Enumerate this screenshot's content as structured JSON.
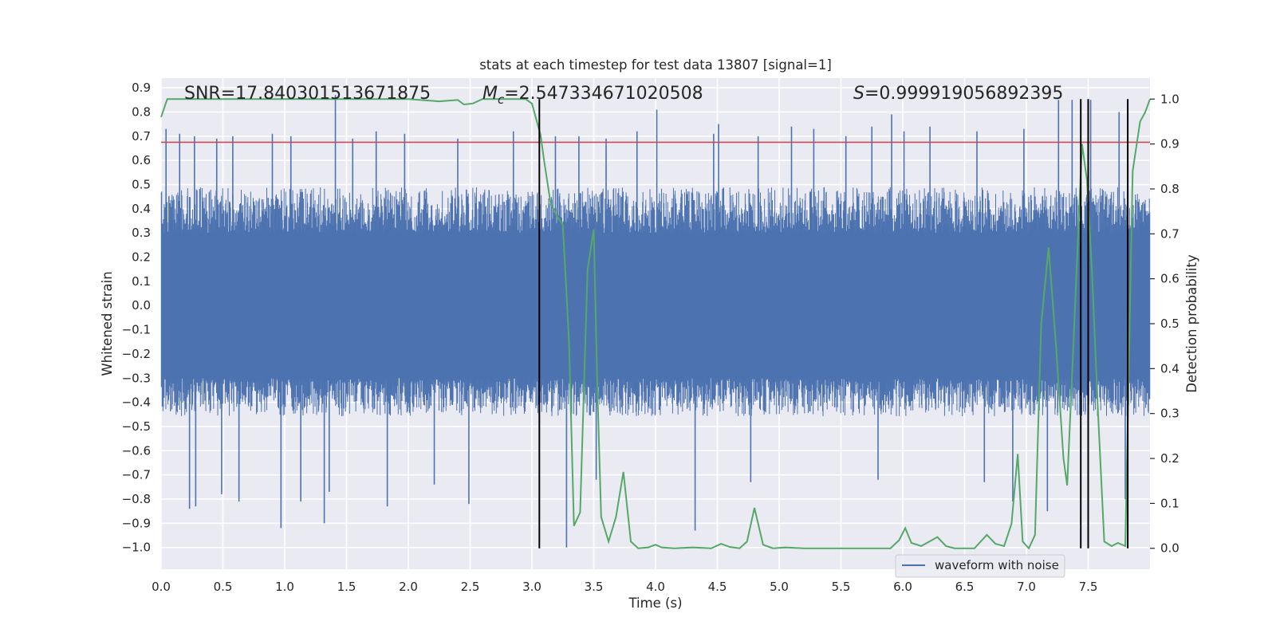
{
  "chart_data": {
    "type": "line",
    "title": "stats at each timestep for test data 13807 [signal=1]",
    "xlabel": "Time (s)",
    "ylabel": "Whitened strain",
    "y2label": "Detection probability",
    "xlim": [
      0.0,
      8.0
    ],
    "ylim": [
      -1.09,
      0.94
    ],
    "y2lim": [
      -0.0466,
      1.0466
    ],
    "xticks": [
      0.0,
      0.5,
      1.0,
      1.5,
      2.0,
      2.5,
      3.0,
      3.5,
      4.0,
      4.5,
      5.0,
      5.5,
      6.0,
      6.5,
      7.0,
      7.5
    ],
    "xtick_labels": [
      "0.0",
      "0.5",
      "1.0",
      "1.5",
      "2.0",
      "2.5",
      "3.0",
      "3.5",
      "4.0",
      "4.5",
      "5.0",
      "5.5",
      "6.0",
      "6.5",
      "7.0",
      "7.5"
    ],
    "yticks": [
      0.9,
      0.8,
      0.7,
      0.6,
      0.5,
      0.4,
      0.3,
      0.2,
      0.1,
      0.0,
      -0.1,
      -0.2,
      -0.3,
      -0.4,
      -0.5,
      -0.6,
      -0.7,
      -0.8,
      -0.9,
      -1.0
    ],
    "ytick_labels": [
      "0.9",
      "0.8",
      "0.7",
      "0.6",
      "0.5",
      "0.4",
      "0.3",
      "0.2",
      "0.1",
      "0.0",
      "−0.1",
      "−0.2",
      "−0.3",
      "−0.4",
      "−0.5",
      "−0.6",
      "−0.7",
      "−0.8",
      "−0.9",
      "−1.0"
    ],
    "y2ticks": [
      1.0,
      0.9,
      0.8,
      0.7,
      0.6,
      0.5,
      0.4,
      0.3,
      0.2,
      0.1,
      0.0
    ],
    "y2tick_labels": [
      "1.0",
      "0.9",
      "0.8",
      "0.7",
      "0.6",
      "0.5",
      "0.4",
      "0.3",
      "0.2",
      "0.1",
      "0.0"
    ],
    "annotations": {
      "snr": "SNR=17.840301513671875",
      "mc_symbol": "M",
      "mc_subscript": "c",
      "mc_value": "=2.547334671020508",
      "s_symbol": "S",
      "s_value": "=0.999919056892395"
    },
    "waveform": {
      "name": "waveform with noise",
      "color": "#4c72b0",
      "typical_range": [
        -0.45,
        0.48
      ],
      "core_range": [
        -0.3,
        0.3
      ],
      "peaks": [
        {
          "t": 0.04,
          "v": 0.73
        },
        {
          "t": 0.15,
          "v": 0.71
        },
        {
          "t": 0.27,
          "v": 0.7
        },
        {
          "t": 0.45,
          "v": 0.69
        },
        {
          "t": 0.58,
          "v": 0.7
        },
        {
          "t": 0.9,
          "v": 0.71
        },
        {
          "t": 1.05,
          "v": 0.7
        },
        {
          "t": 1.41,
          "v": 0.87
        },
        {
          "t": 1.55,
          "v": 0.69
        },
        {
          "t": 1.74,
          "v": 0.72
        },
        {
          "t": 1.97,
          "v": 0.71
        },
        {
          "t": 2.4,
          "v": 0.69
        },
        {
          "t": 2.85,
          "v": 0.72
        },
        {
          "t": 3.19,
          "v": 0.7
        },
        {
          "t": 3.38,
          "v": 0.7
        },
        {
          "t": 3.6,
          "v": 0.69
        },
        {
          "t": 3.85,
          "v": 0.72
        },
        {
          "t": 4.01,
          "v": 0.81
        },
        {
          "t": 4.47,
          "v": 0.71
        },
        {
          "t": 4.51,
          "v": 0.75
        },
        {
          "t": 4.83,
          "v": 0.7
        },
        {
          "t": 5.1,
          "v": 0.74
        },
        {
          "t": 5.28,
          "v": 0.73
        },
        {
          "t": 5.54,
          "v": 0.7
        },
        {
          "t": 5.75,
          "v": 0.74
        },
        {
          "t": 5.91,
          "v": 0.79
        },
        {
          "t": 6.01,
          "v": 0.72
        },
        {
          "t": 6.22,
          "v": 0.74
        },
        {
          "t": 6.6,
          "v": 0.72
        },
        {
          "t": 6.98,
          "v": 0.73
        },
        {
          "t": 7.26,
          "v": 0.85
        },
        {
          "t": 7.37,
          "v": 0.85
        },
        {
          "t": 7.52,
          "v": 0.85
        },
        {
          "t": 7.75,
          "v": 0.8
        }
      ],
      "troughs": [
        {
          "t": 0.23,
          "v": -0.84
        },
        {
          "t": 0.28,
          "v": -0.83
        },
        {
          "t": 0.49,
          "v": -0.78
        },
        {
          "t": 0.63,
          "v": -0.81
        },
        {
          "t": 0.97,
          "v": -0.92
        },
        {
          "t": 1.13,
          "v": -0.81
        },
        {
          "t": 1.32,
          "v": -0.9
        },
        {
          "t": 1.36,
          "v": -0.77
        },
        {
          "t": 1.83,
          "v": -0.83
        },
        {
          "t": 2.21,
          "v": -0.74
        },
        {
          "t": 2.49,
          "v": -0.82
        },
        {
          "t": 3.28,
          "v": -1.0
        },
        {
          "t": 3.52,
          "v": -0.72
        },
        {
          "t": 4.32,
          "v": -0.93
        },
        {
          "t": 4.77,
          "v": -0.73
        },
        {
          "t": 5.8,
          "v": -0.72
        },
        {
          "t": 6.66,
          "v": -0.73
        },
        {
          "t": 6.89,
          "v": -0.81
        },
        {
          "t": 7.17,
          "v": -0.85
        },
        {
          "t": 7.5,
          "v": -0.81
        },
        {
          "t": 7.8,
          "v": -0.8
        }
      ]
    },
    "threshold": {
      "value": 0.675,
      "color": "#c44e52"
    },
    "detection_probability": {
      "color": "#55a868",
      "points": [
        [
          0.0,
          0.96
        ],
        [
          0.05,
          1.0
        ],
        [
          0.5,
          1.0
        ],
        [
          1.0,
          1.0
        ],
        [
          1.5,
          1.0
        ],
        [
          2.0,
          1.0
        ],
        [
          2.25,
          0.995
        ],
        [
          2.4,
          0.998
        ],
        [
          2.45,
          0.988
        ],
        [
          2.52,
          0.99
        ],
        [
          2.6,
          1.0
        ],
        [
          2.95,
          1.0
        ],
        [
          3.0,
          0.99
        ],
        [
          3.07,
          0.92
        ],
        [
          3.1,
          0.86
        ],
        [
          3.15,
          0.77
        ],
        [
          3.2,
          0.74
        ],
        [
          3.25,
          0.72
        ],
        [
          3.3,
          0.46
        ],
        [
          3.34,
          0.05
        ],
        [
          3.39,
          0.08
        ],
        [
          3.45,
          0.62
        ],
        [
          3.5,
          0.71
        ],
        [
          3.53,
          0.35
        ],
        [
          3.56,
          0.07
        ],
        [
          3.62,
          0.015
        ],
        [
          3.68,
          0.07
        ],
        [
          3.74,
          0.17
        ],
        [
          3.8,
          0.015
        ],
        [
          3.86,
          0.0
        ],
        [
          3.94,
          0.002
        ],
        [
          4.0,
          0.008
        ],
        [
          4.05,
          0.002
        ],
        [
          4.15,
          0.0
        ],
        [
          4.3,
          0.002
        ],
        [
          4.45,
          0.0
        ],
        [
          4.53,
          0.01
        ],
        [
          4.6,
          0.003
        ],
        [
          4.68,
          0.0
        ],
        [
          4.74,
          0.015
        ],
        [
          4.8,
          0.09
        ],
        [
          4.87,
          0.008
        ],
        [
          4.95,
          0.0
        ],
        [
          5.05,
          0.002
        ],
        [
          5.2,
          0.0
        ],
        [
          5.9,
          0.0
        ],
        [
          5.97,
          0.018
        ],
        [
          6.02,
          0.045
        ],
        [
          6.07,
          0.012
        ],
        [
          6.15,
          0.005
        ],
        [
          6.28,
          0.025
        ],
        [
          6.35,
          0.005
        ],
        [
          6.42,
          0.0
        ],
        [
          6.58,
          0.0
        ],
        [
          6.68,
          0.03
        ],
        [
          6.75,
          0.01
        ],
        [
          6.82,
          0.005
        ],
        [
          6.88,
          0.055
        ],
        [
          6.93,
          0.21
        ],
        [
          6.97,
          0.015
        ],
        [
          7.02,
          0.0
        ],
        [
          7.07,
          0.03
        ],
        [
          7.12,
          0.5
        ],
        [
          7.18,
          0.67
        ],
        [
          7.24,
          0.45
        ],
        [
          7.3,
          0.2
        ],
        [
          7.33,
          0.14
        ],
        [
          7.38,
          0.45
        ],
        [
          7.45,
          0.9
        ],
        [
          7.49,
          0.82
        ],
        [
          7.53,
          0.62
        ],
        [
          7.58,
          0.3
        ],
        [
          7.63,
          0.015
        ],
        [
          7.69,
          0.005
        ],
        [
          7.74,
          0.012
        ],
        [
          7.8,
          0.005
        ],
        [
          7.86,
          0.84
        ],
        [
          7.92,
          0.95
        ],
        [
          7.96,
          0.97
        ],
        [
          8.0,
          1.0
        ]
      ]
    },
    "vertical_markers": {
      "times": [
        3.06,
        7.44,
        7.5,
        7.82
      ],
      "color": "#000000"
    },
    "legend": {
      "label": "waveform with noise",
      "position": "lower-right"
    },
    "colors": {
      "axes_bg": "#eaeaf2",
      "grid": "#ffffff",
      "text": "#262626"
    }
  }
}
